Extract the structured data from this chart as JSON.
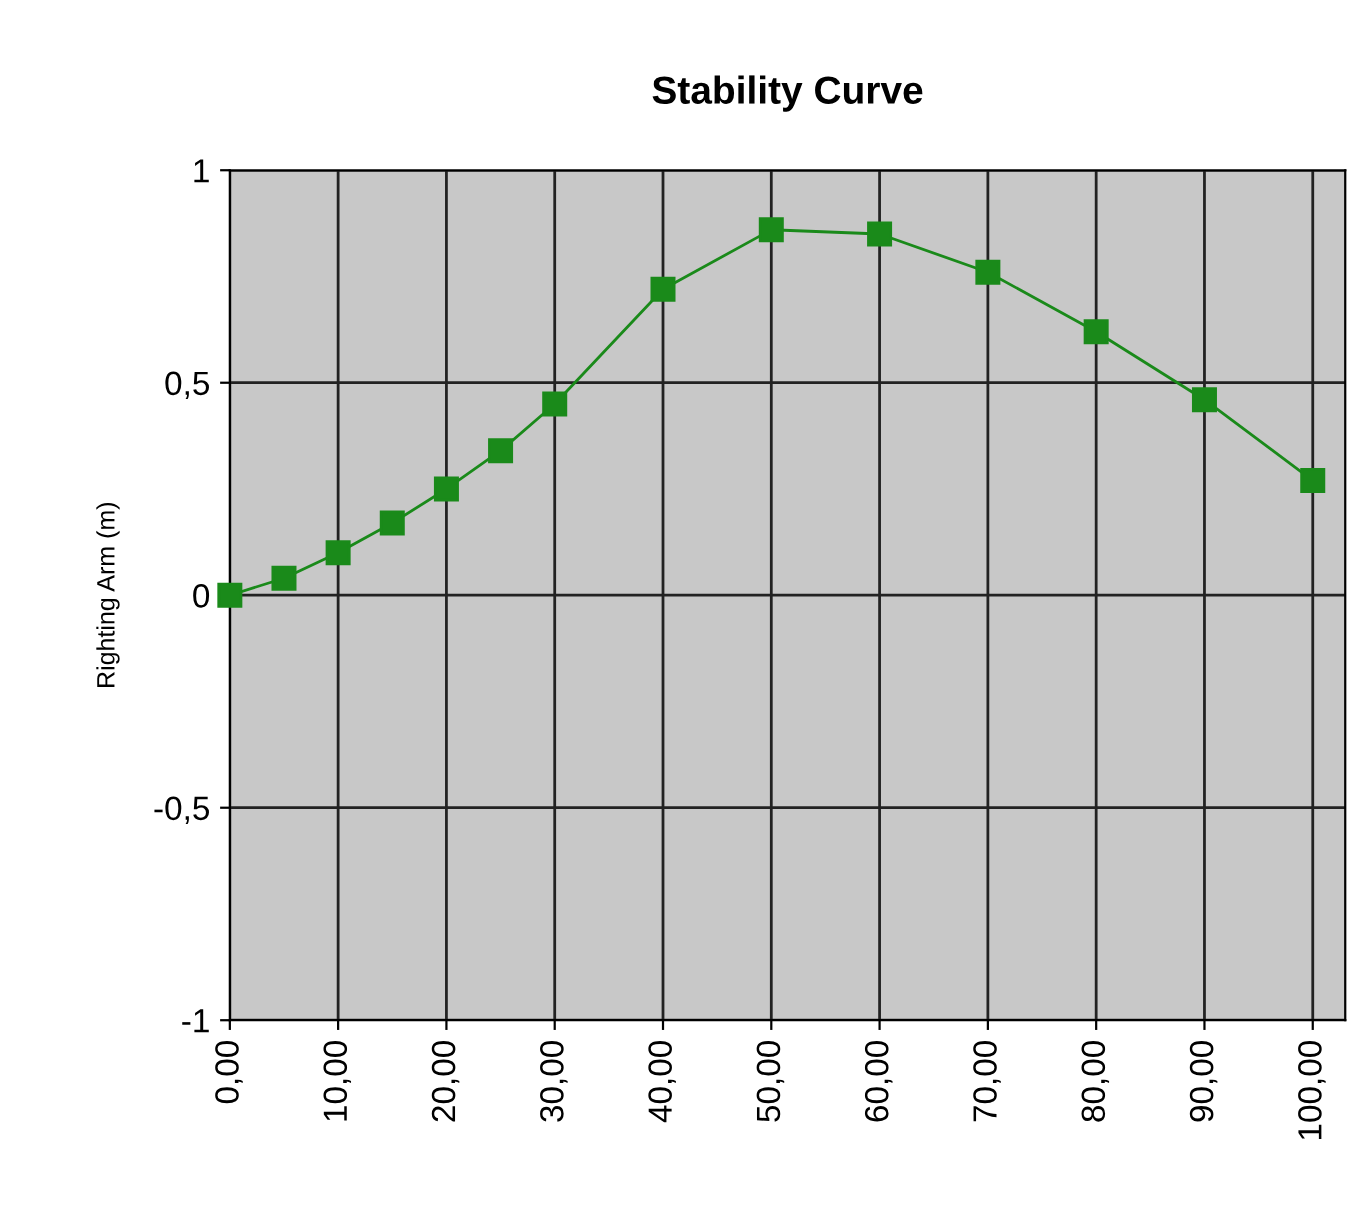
{
  "chart_data": {
    "type": "line",
    "title": "Stability Curve",
    "ylabel": "Righting Arm (m)",
    "x": [
      0,
      5,
      10,
      15,
      20,
      25,
      30,
      40,
      50,
      60,
      70,
      80,
      90,
      100
    ],
    "series": [
      {
        "color": "#1a8a1a",
        "values": [
          0,
          0.04,
          0.1,
          0.17,
          0.25,
          0.34,
          0.45,
          0.72,
          0.86,
          0.85,
          0.76,
          0.62,
          0.46,
          0.27
        ]
      }
    ],
    "marker": "square",
    "line_style": "solid",
    "xlim": [
      0,
      103
    ],
    "ylim": [
      -1,
      1
    ],
    "xticks": [
      {
        "value": 0,
        "label": "0,00"
      },
      {
        "value": 10,
        "label": "10,00"
      },
      {
        "value": 20,
        "label": "20,00"
      },
      {
        "value": 30,
        "label": "30,00"
      },
      {
        "value": 40,
        "label": "40,00"
      },
      {
        "value": 50,
        "label": "50,00"
      },
      {
        "value": 60,
        "label": "60,00"
      },
      {
        "value": 70,
        "label": "70,00"
      },
      {
        "value": 80,
        "label": "80,00"
      },
      {
        "value": 90,
        "label": "90,00"
      },
      {
        "value": 100,
        "label": "100,00"
      }
    ],
    "yticks": [
      -1,
      {
        "value": -0.5,
        "label": "-0,5"
      },
      0,
      {
        "value": 0.5,
        "label": "0,5"
      },
      1
    ],
    "grid": true
  }
}
